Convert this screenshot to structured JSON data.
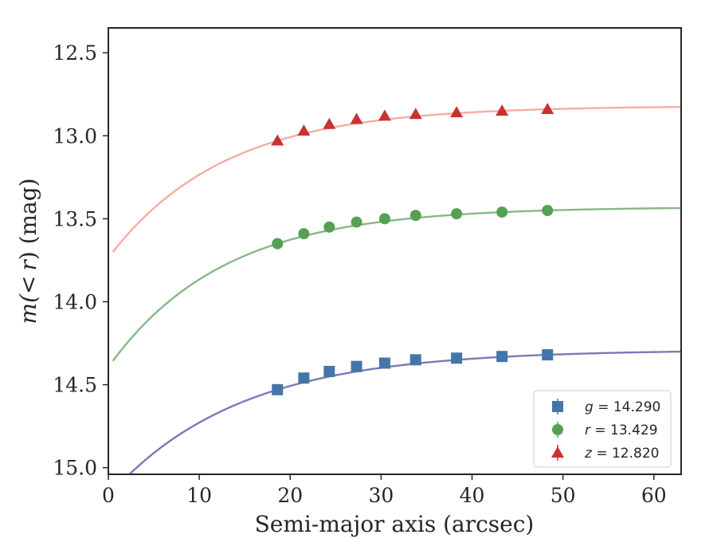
{
  "chart_data": {
    "type": "line",
    "title": "",
    "xlabel": "Semi-major axis (arcsec)",
    "ylabel_prefix": "m(",
    "ylabel_lt": "<",
    "ylabel_r": "r",
    "ylabel_suffix": ") (mag)",
    "xlim": [
      0,
      63
    ],
    "ylim": [
      15.04,
      12.35
    ],
    "y_inverted": true,
    "xticks": [
      0,
      10,
      20,
      30,
      40,
      50,
      60
    ],
    "yticks": [
      12.5,
      13.0,
      13.5,
      14.0,
      14.5,
      15.0
    ],
    "x": [
      18.6,
      21.5,
      24.3,
      27.3,
      30.4,
      33.8,
      38.3,
      43.3,
      48.3
    ],
    "series": [
      {
        "name": "g",
        "legend_value": "14.290",
        "marker": "square",
        "color": "#4575a8",
        "curve_color": "#7a7ab8",
        "asymptote": 14.29,
        "values": [
          14.53,
          14.46,
          14.42,
          14.39,
          14.37,
          14.35,
          14.34,
          14.33,
          14.32
        ]
      },
      {
        "name": "r",
        "legend_value": "13.429",
        "marker": "circle",
        "color": "#55a055",
        "curve_color": "#86b886",
        "asymptote": 13.429,
        "values": [
          13.65,
          13.59,
          13.55,
          13.52,
          13.5,
          13.48,
          13.47,
          13.46,
          13.45
        ]
      },
      {
        "name": "z",
        "legend_value": "12.820",
        "marker": "triangle",
        "color": "#c83232",
        "curve_color": "#f6ada2",
        "asymptote": 12.82,
        "values": [
          13.03,
          12.97,
          12.93,
          12.9,
          12.88,
          12.87,
          12.86,
          12.85,
          12.84
        ]
      }
    ],
    "legend_position": "bottom-right",
    "grid": false
  }
}
